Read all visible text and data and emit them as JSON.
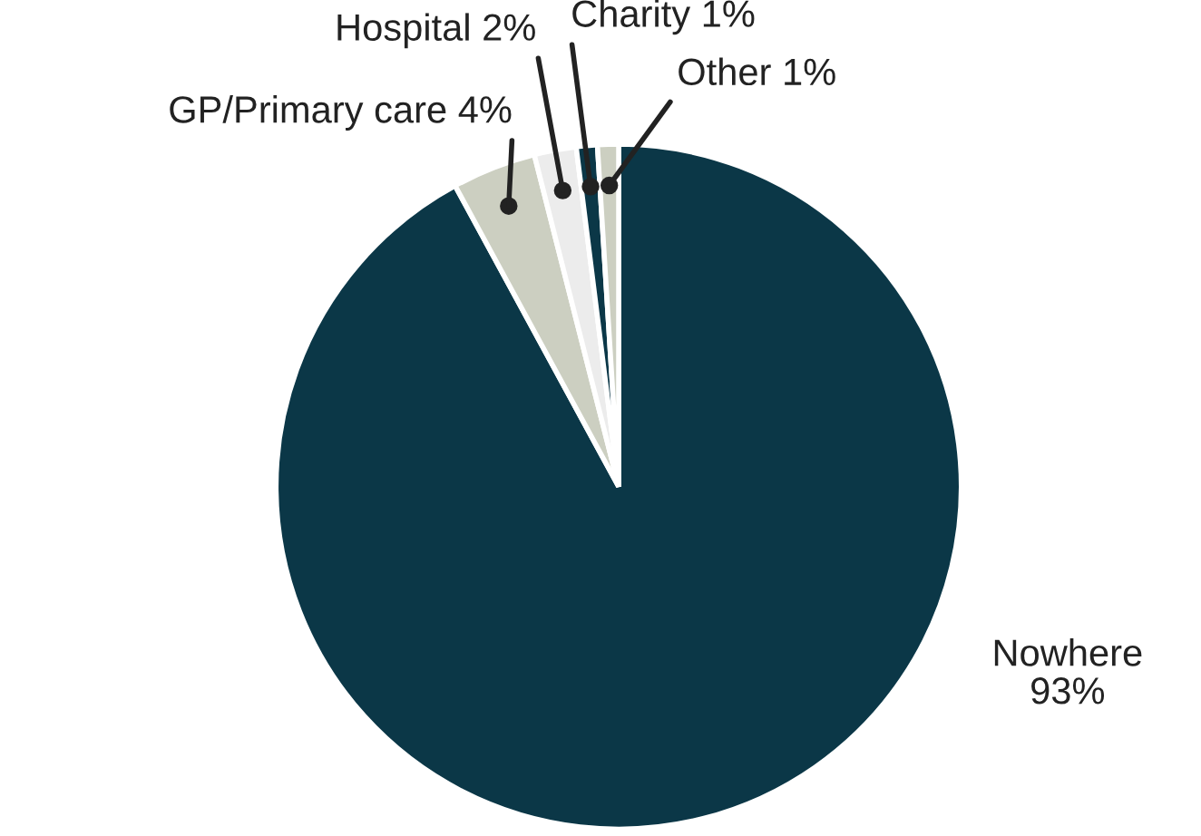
{
  "chart_data": {
    "type": "pie",
    "categories": [
      "Nowhere",
      "GP/Primary care",
      "Hospital",
      "Charity",
      "Other"
    ],
    "values": [
      93,
      4,
      2,
      1,
      1
    ],
    "value_labels": [
      "93%",
      "4%",
      "2%",
      "1%",
      "1%"
    ],
    "colors": [
      "#0b3747",
      "#cccfc1",
      "#ececec",
      "#0b3747",
      "#cccfc1"
    ]
  }
}
